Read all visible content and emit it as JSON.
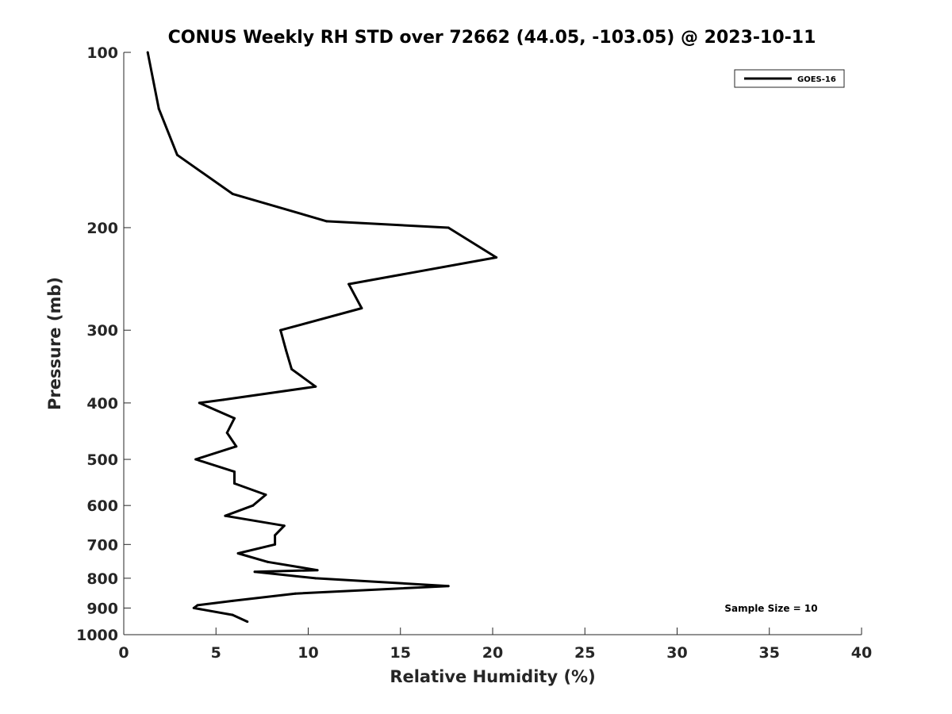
{
  "chart_data": {
    "type": "line",
    "title": "CONUS Weekly RH STD over 72662 (44.05, -103.05) @ 2023-10-11",
    "xlabel": "Relative Humidity (%)",
    "ylabel": "Pressure (mb)",
    "xlim": [
      0,
      40
    ],
    "ylim": [
      100,
      1000
    ],
    "yscale": "log",
    "y_reversed": true,
    "grid": false,
    "x_ticks": [
      0,
      5,
      10,
      15,
      20,
      25,
      30,
      35,
      40
    ],
    "x_tick_labels": [
      "0",
      "5",
      "10",
      "15",
      "20",
      "25",
      "30",
      "35",
      "40"
    ],
    "y_ticks": [
      100,
      200,
      300,
      400,
      500,
      600,
      700,
      800,
      900,
      1000
    ],
    "y_tick_labels": [
      "100",
      "200",
      "300",
      "400",
      "500",
      "600",
      "700",
      "800",
      "900",
      "1000"
    ],
    "legend_position": "top-right",
    "series": [
      {
        "name": "GOES-16",
        "color": "#000000",
        "points": [
          [
            1.3,
            100
          ],
          [
            1.9,
            125
          ],
          [
            2.9,
            150
          ],
          [
            5.9,
            175
          ],
          [
            11.0,
            195
          ],
          [
            17.6,
            200
          ],
          [
            20.2,
            225
          ],
          [
            12.2,
            250
          ],
          [
            12.9,
            275
          ],
          [
            8.5,
            300
          ],
          [
            8.8,
            325
          ],
          [
            9.1,
            350
          ],
          [
            10.4,
            375
          ],
          [
            5.4,
            395
          ],
          [
            4.1,
            400
          ],
          [
            6.0,
            425
          ],
          [
            5.6,
            450
          ],
          [
            6.1,
            475
          ],
          [
            3.9,
            500
          ],
          [
            6.0,
            525
          ],
          [
            6.0,
            550
          ],
          [
            7.7,
            575
          ],
          [
            7.0,
            600
          ],
          [
            5.5,
            625
          ],
          [
            8.7,
            650
          ],
          [
            8.2,
            675
          ],
          [
            8.2,
            700
          ],
          [
            6.2,
            725
          ],
          [
            7.8,
            750
          ],
          [
            10.5,
            775
          ],
          [
            7.1,
            780
          ],
          [
            10.4,
            800
          ],
          [
            17.6,
            825
          ],
          [
            9.3,
            850
          ],
          [
            5.9,
            875
          ],
          [
            4.0,
            890
          ],
          [
            3.8,
            900
          ],
          [
            5.9,
            925
          ],
          [
            6.7,
            950
          ]
        ]
      }
    ],
    "annotations": [
      {
        "text": "Sample Size = 10",
        "position": "bottom-right"
      }
    ]
  }
}
